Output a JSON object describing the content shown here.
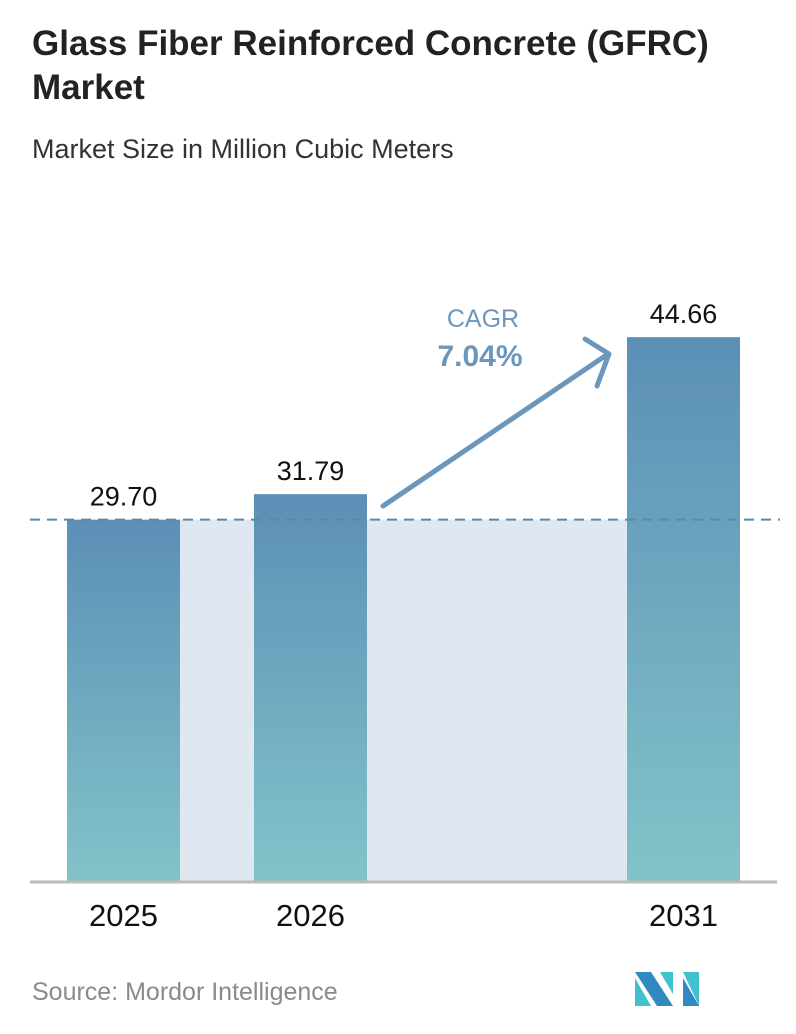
{
  "chart_data": {
    "type": "bar",
    "title": "Glass Fiber Reinforced Concrete (GFRC) Market",
    "subtitle": "Market Size in Million Cubic Meters",
    "categories": [
      "2025",
      "2026",
      "2031"
    ],
    "values": [
      29.7,
      31.79,
      44.66
    ],
    "value_labels": [
      "29.70",
      "31.79",
      "44.66"
    ],
    "xlabel": "",
    "ylabel": "",
    "ylim": [
      0,
      72
    ],
    "grid": false,
    "annotation": {
      "label": "CAGR",
      "value": "7.04%"
    },
    "colors": {
      "bar_top": "#5b8fb6",
      "bar_bottom": "#82c3c9",
      "band": "#dfe8f0",
      "annotation": "#6b97bd"
    }
  },
  "source": "Source:  Mordor Intelligence",
  "logo": {
    "name": "mordor-intelligence-logo",
    "text": "MI"
  }
}
